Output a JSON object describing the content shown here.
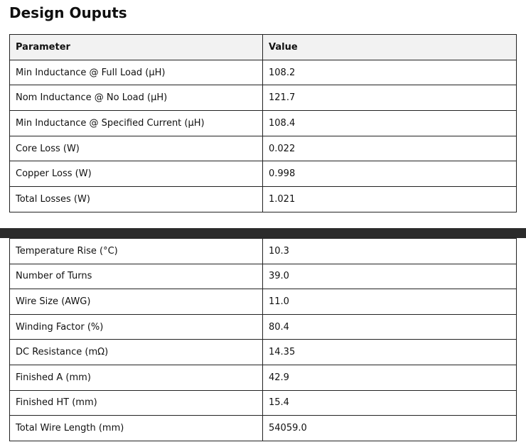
{
  "page": {
    "title": "Design Ouputs"
  },
  "table": {
    "headers": [
      "Parameter",
      "Value"
    ],
    "rows_top": [
      [
        "Min Inductance @ Full Load (µH)",
        "108.2"
      ],
      [
        "Nom Inductance @ No Load (µH)",
        "121.7"
      ],
      [
        "Min Inductance @ Specified Current (µH)",
        "108.4"
      ],
      [
        "Core Loss (W)",
        "0.022"
      ],
      [
        "Copper Loss (W)",
        "0.998"
      ],
      [
        "Total Losses (W)",
        "1.021"
      ]
    ],
    "rows_bottom": [
      [
        "Temperature Rise (°C)",
        "10.3"
      ],
      [
        "Number of Turns",
        "39.0"
      ],
      [
        "Wire Size (AWG)",
        "11.0"
      ],
      [
        "Winding Factor (%)",
        "80.4"
      ],
      [
        "DC Resistance (mΩ)",
        "14.35"
      ],
      [
        "Finished A (mm)",
        "42.9"
      ],
      [
        "Finished HT (mm)",
        "15.4"
      ],
      [
        "Total Wire Length (mm)",
        "54059.0"
      ]
    ]
  },
  "colors": {
    "header_bg": "#f2f2f2",
    "border": "#222222",
    "divider_bar": "#2b2b2b"
  }
}
